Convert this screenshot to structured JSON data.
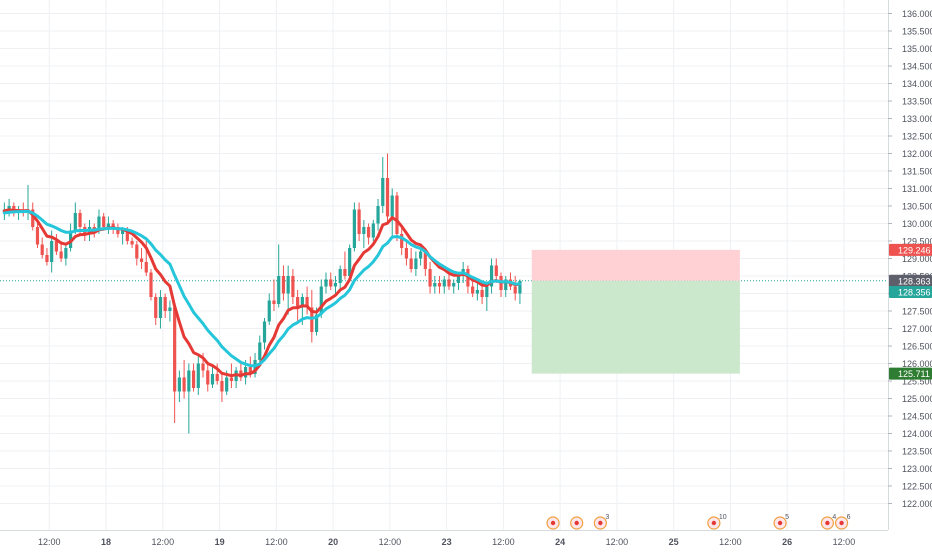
{
  "chart_data": {
    "type": "candlestick",
    "price_axis": {
      "ylim": [
        121.5,
        136.2
      ],
      "ticks": [
        "122.000",
        "122.500",
        "123.000",
        "123.500",
        "124.000",
        "124.500",
        "125.000",
        "125.500",
        "126.000",
        "126.500",
        "127.000",
        "127.500",
        "128.000",
        "128.500",
        "129.000",
        "129.500",
        "130.000",
        "130.500",
        "131.000",
        "131.500",
        "132.000",
        "132.500",
        "133.000",
        "133.500",
        "134.000",
        "134.500",
        "135.000",
        "135.500",
        "136.000"
      ]
    },
    "time_axis": {
      "ticks": [
        {
          "label": "12:00",
          "bar": 10
        },
        {
          "label": "18",
          "bar": 22
        },
        {
          "label": "12:00",
          "bar": 34
        },
        {
          "label": "19",
          "bar": 46
        },
        {
          "label": "12:00",
          "bar": 58
        },
        {
          "label": "20",
          "bar": 70
        },
        {
          "label": "12:00",
          "bar": 82
        },
        {
          "label": "23",
          "bar": 94
        },
        {
          "label": "12:00",
          "bar": 106
        },
        {
          "label": "24",
          "bar": 118
        },
        {
          "label": "12:00",
          "bar": 130
        },
        {
          "label": "25",
          "bar": 142
        },
        {
          "label": "12:00",
          "bar": 154
        },
        {
          "label": "26",
          "bar": 166
        },
        {
          "label": "12:00",
          "bar": 178
        }
      ]
    },
    "candles_ohlc": [
      [
        130.3,
        130.6,
        130.1,
        130.4
      ],
      [
        130.4,
        130.7,
        130.2,
        130.5
      ],
      [
        130.5,
        130.6,
        130.2,
        130.3
      ],
      [
        130.3,
        130.5,
        130.1,
        130.4
      ],
      [
        130.4,
        130.6,
        130.2,
        130.3
      ],
      [
        130.3,
        131.1,
        130.1,
        130.4
      ],
      [
        130.4,
        130.6,
        129.8,
        129.9
      ],
      [
        129.9,
        130.0,
        129.3,
        129.4
      ],
      [
        129.4,
        129.6,
        129.0,
        129.1
      ],
      [
        129.1,
        129.3,
        128.8,
        128.9
      ],
      [
        128.9,
        129.8,
        128.6,
        129.5
      ],
      [
        129.5,
        129.7,
        129.1,
        129.2
      ],
      [
        129.2,
        129.5,
        128.9,
        129.0
      ],
      [
        129.0,
        129.4,
        128.8,
        129.3
      ],
      [
        129.3,
        130.0,
        129.2,
        129.8
      ],
      [
        129.8,
        130.6,
        129.7,
        130.3
      ],
      [
        130.3,
        130.4,
        129.7,
        129.9
      ],
      [
        129.9,
        130.0,
        129.5,
        129.7
      ],
      [
        129.7,
        130.1,
        129.5,
        129.9
      ],
      [
        129.9,
        130.0,
        129.6,
        129.8
      ],
      [
        129.8,
        130.4,
        129.7,
        130.2
      ],
      [
        130.2,
        130.3,
        129.8,
        129.9
      ],
      [
        129.9,
        130.2,
        129.7,
        130.0
      ],
      [
        130.0,
        130.1,
        129.7,
        129.9
      ],
      [
        129.9,
        130.0,
        129.6,
        129.7
      ],
      [
        129.7,
        129.9,
        129.4,
        129.8
      ],
      [
        129.8,
        129.9,
        129.4,
        129.5
      ],
      [
        129.5,
        129.6,
        129.3,
        129.4
      ],
      [
        129.4,
        129.5,
        128.8,
        129.0
      ],
      [
        129.0,
        129.3,
        128.7,
        128.9
      ],
      [
        128.9,
        129.5,
        128.5,
        128.6
      ],
      [
        128.6,
        128.7,
        127.8,
        127.9
      ],
      [
        127.9,
        128.0,
        127.1,
        127.3
      ],
      [
        127.3,
        128.1,
        127.0,
        127.9
      ],
      [
        127.9,
        128.0,
        127.3,
        127.5
      ],
      [
        127.5,
        127.8,
        127.2,
        127.6
      ],
      [
        127.6,
        127.7,
        124.3,
        125.2
      ],
      [
        125.2,
        125.8,
        124.9,
        125.6
      ],
      [
        125.6,
        126.1,
        125.0,
        125.2
      ],
      [
        125.2,
        126.0,
        124.0,
        125.8
      ],
      [
        125.8,
        126.0,
        125.2,
        125.3
      ],
      [
        125.3,
        126.2,
        125.1,
        126.0
      ],
      [
        126.0,
        126.3,
        125.6,
        125.8
      ],
      [
        125.8,
        126.0,
        125.2,
        125.4
      ],
      [
        125.4,
        125.9,
        125.3,
        125.7
      ],
      [
        125.7,
        126.0,
        125.4,
        125.5
      ],
      [
        125.5,
        125.7,
        124.9,
        125.2
      ],
      [
        125.2,
        125.8,
        125.1,
        125.6
      ],
      [
        125.6,
        126.0,
        125.3,
        125.5
      ],
      [
        125.5,
        125.9,
        125.3,
        125.8
      ],
      [
        125.8,
        126.0,
        125.5,
        125.6
      ],
      [
        125.6,
        126.1,
        125.4,
        125.9
      ],
      [
        125.9,
        126.2,
        125.6,
        125.7
      ],
      [
        125.7,
        126.3,
        125.6,
        126.1
      ],
      [
        126.1,
        126.8,
        126.0,
        126.6
      ],
      [
        126.6,
        127.3,
        126.4,
        127.2
      ],
      [
        127.2,
        128.0,
        127.1,
        127.8
      ],
      [
        127.8,
        128.4,
        127.5,
        127.7
      ],
      [
        127.7,
        129.4,
        127.6,
        128.5
      ],
      [
        128.5,
        128.8,
        127.8,
        128.0
      ],
      [
        128.0,
        128.8,
        127.4,
        128.5
      ],
      [
        128.5,
        128.7,
        127.7,
        127.9
      ],
      [
        127.9,
        128.1,
        127.2,
        127.6
      ],
      [
        127.6,
        128.0,
        127.1,
        127.9
      ],
      [
        127.9,
        128.2,
        127.4,
        127.6
      ],
      [
        127.6,
        128.1,
        126.6,
        126.9
      ],
      [
        126.9,
        127.6,
        126.8,
        127.4
      ],
      [
        127.4,
        128.4,
        127.3,
        128.2
      ],
      [
        128.2,
        128.6,
        128.0,
        128.4
      ],
      [
        128.4,
        128.6,
        128.1,
        128.2
      ],
      [
        128.2,
        128.5,
        128.0,
        128.3
      ],
      [
        128.3,
        128.8,
        128.1,
        128.7
      ],
      [
        128.7,
        129.2,
        128.4,
        128.5
      ],
      [
        128.5,
        129.4,
        128.4,
        129.3
      ],
      [
        129.3,
        130.6,
        129.2,
        130.4
      ],
      [
        130.4,
        130.6,
        129.5,
        129.7
      ],
      [
        129.7,
        130.1,
        129.3,
        129.9
      ],
      [
        129.9,
        130.0,
        129.4,
        129.6
      ],
      [
        129.6,
        130.1,
        129.5,
        130.0
      ],
      [
        130.0,
        130.7,
        129.8,
        130.5
      ],
      [
        130.5,
        131.9,
        130.3,
        131.3
      ],
      [
        131.3,
        132.0,
        130.0,
        130.2
      ],
      [
        130.2,
        131.0,
        129.6,
        130.8
      ],
      [
        130.8,
        130.9,
        129.5,
        129.7
      ],
      [
        129.7,
        129.9,
        129.1,
        129.3
      ],
      [
        129.3,
        129.5,
        128.8,
        129.0
      ],
      [
        129.0,
        129.3,
        128.6,
        128.7
      ],
      [
        128.7,
        129.2,
        128.5,
        129.0
      ],
      [
        129.0,
        129.4,
        128.8,
        129.2
      ],
      [
        129.2,
        129.3,
        128.5,
        128.7
      ],
      [
        128.7,
        128.9,
        128.0,
        128.2
      ],
      [
        128.2,
        128.5,
        128.0,
        128.3
      ],
      [
        128.3,
        128.5,
        128.0,
        128.2
      ],
      [
        128.2,
        128.5,
        128.0,
        128.4
      ],
      [
        128.4,
        128.6,
        128.1,
        128.2
      ],
      [
        128.2,
        128.4,
        128.0,
        128.3
      ],
      [
        128.3,
        128.6,
        128.1,
        128.5
      ],
      [
        128.5,
        128.9,
        128.3,
        128.7
      ],
      [
        128.7,
        128.8,
        128.0,
        128.2
      ],
      [
        128.2,
        128.4,
        127.9,
        128.0
      ],
      [
        128.0,
        128.3,
        127.8,
        128.1
      ],
      [
        128.1,
        128.2,
        127.7,
        127.9
      ],
      [
        127.9,
        128.3,
        127.5,
        128.2
      ],
      [
        128.2,
        129.0,
        128.0,
        128.8
      ],
      [
        128.8,
        129.0,
        128.3,
        128.5
      ],
      [
        128.5,
        128.6,
        127.9,
        128.1
      ],
      [
        128.1,
        128.5,
        127.9,
        128.4
      ],
      [
        128.4,
        128.6,
        128.1,
        128.2
      ],
      [
        128.2,
        128.5,
        127.8,
        128.0
      ],
      [
        128.0,
        128.4,
        127.7,
        128.36
      ]
    ],
    "series": [
      {
        "name": "",
        "color": "#e53935",
        "values": [
          130.36,
          130.39,
          130.37,
          130.37,
          130.36,
          130.37,
          130.25,
          130.07,
          129.86,
          129.64,
          129.61,
          129.54,
          129.44,
          129.41,
          129.48,
          129.63,
          129.68,
          129.69,
          129.72,
          129.74,
          129.82,
          129.84,
          129.87,
          129.88,
          129.85,
          129.84,
          129.78,
          129.71,
          129.59,
          129.47,
          129.3,
          129.02,
          128.7,
          128.54,
          128.34,
          128.21,
          127.64,
          127.18,
          126.76,
          126.57,
          126.31,
          126.25,
          126.16,
          126.0,
          125.94,
          125.85,
          125.72,
          125.69,
          125.65,
          125.68,
          125.66,
          125.71,
          125.71,
          125.79,
          125.96,
          126.21,
          126.52,
          126.75,
          127.1,
          127.28,
          127.52,
          127.59,
          127.59,
          127.65,
          127.64,
          127.49,
          127.47,
          127.62,
          127.78,
          127.86,
          127.95,
          128.1,
          128.18,
          128.4,
          128.8,
          128.98,
          129.17,
          129.26,
          129.41,
          129.63,
          129.96,
          130.01,
          130.17,
          130.08,
          129.92,
          129.73,
          129.53,
          129.43,
          129.39,
          129.25,
          129.04,
          128.89,
          128.75,
          128.68,
          128.58,
          128.52,
          128.52,
          128.56,
          128.49,
          128.39,
          128.33,
          128.24,
          128.23,
          128.34,
          128.37,
          128.32,
          128.34,
          128.31,
          128.25,
          128.27
        ]
      },
      {
        "name": "",
        "color": "#26c6da",
        "values": [
          130.3,
          130.32,
          130.33,
          130.34,
          130.34,
          130.35,
          130.3,
          130.21,
          130.1,
          129.98,
          129.93,
          129.87,
          129.8,
          129.75,
          129.75,
          129.79,
          129.8,
          129.8,
          129.81,
          129.81,
          129.84,
          129.85,
          129.86,
          129.86,
          129.85,
          129.85,
          129.82,
          129.78,
          129.72,
          129.65,
          129.56,
          129.42,
          129.24,
          129.11,
          128.96,
          128.84,
          128.52,
          128.22,
          127.92,
          127.7,
          127.46,
          127.3,
          127.14,
          126.95,
          126.8,
          126.66,
          126.48,
          126.35,
          126.22,
          126.13,
          126.03,
          125.98,
          125.94,
          125.93,
          125.99,
          126.11,
          126.28,
          126.43,
          126.64,
          126.79,
          126.99,
          127.1,
          127.17,
          127.27,
          127.31,
          127.29,
          127.32,
          127.43,
          127.56,
          127.64,
          127.73,
          127.86,
          127.95,
          128.11,
          128.37,
          128.52,
          128.67,
          128.77,
          128.91,
          129.09,
          129.34,
          129.44,
          129.61,
          129.63,
          129.59,
          129.51,
          129.4,
          129.33,
          129.29,
          129.2,
          129.05,
          128.94,
          128.84,
          128.76,
          128.68,
          128.61,
          128.58,
          128.59,
          128.53,
          128.46,
          128.4,
          128.33,
          128.29,
          128.34,
          128.36,
          128.33,
          128.34,
          128.32,
          128.27,
          128.27
        ]
      }
    ],
    "colors": {
      "up": "#26a69a",
      "down": "#ef5350",
      "grid": "#eef0f3"
    },
    "position": {
      "type": "short",
      "entry": 128.363,
      "stop": 129.246,
      "target": 125.711,
      "start_bar": 112,
      "end_bar": 156,
      "stop_zone_color": "#ffcdd2",
      "target_zone_color": "#c8e6c9"
    },
    "price_labels": [
      {
        "name": "stop-price-label",
        "value": "129.246",
        "bg": "#ef5350",
        "fg": "#ffffff",
        "price": 129.246
      },
      {
        "name": "entry-price-label",
        "value": "128.363",
        "bg": "#5d606b",
        "fg": "#ffffff",
        "price": 128.363
      },
      {
        "name": "current-price-label",
        "value": "128.356",
        "bg": "#26a69a",
        "fg": "#ffffff",
        "price": 128.356
      },
      {
        "name": "target-price-label",
        "value": "125.711",
        "bg": "#2e7d32",
        "fg": "#ffffff",
        "price": 125.711
      }
    ],
    "events": [
      {
        "bar": 116,
        "badge": ""
      },
      {
        "bar": 121,
        "badge": ""
      },
      {
        "bar": 126,
        "badge": "3"
      },
      {
        "bar": 150,
        "badge": "10"
      },
      {
        "bar": 164,
        "badge": "5"
      },
      {
        "bar": 174,
        "badge": "4"
      },
      {
        "bar": 177,
        "badge": "6"
      }
    ]
  }
}
